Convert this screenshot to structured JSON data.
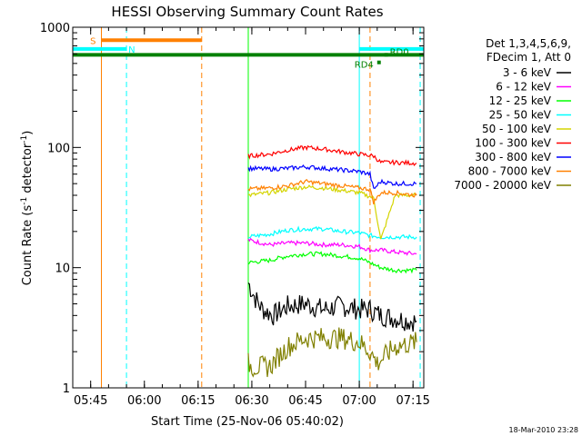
{
  "chart_data": {
    "type": "line",
    "title": "HESSI Observing Summary Count Rates",
    "xlabel": "Start Time (25-Nov-06 05:40:02)",
    "ylabel_main": "Count Rate (s",
    "ylabel_sup1": "-1",
    "ylabel_mid": " detector",
    "ylabel_sup2": "-1",
    "ylabel_end": ")",
    "yscale": "log",
    "xlim": [
      "05:40",
      "07:18"
    ],
    "ylim": [
      1,
      1000
    ],
    "xticks": [
      "05:45",
      "06:00",
      "06:15",
      "06:30",
      "06:45",
      "07:00",
      "07:15"
    ],
    "yticks": [
      {
        "value": 1,
        "label": "1"
      },
      {
        "value": 10,
        "label": "10"
      },
      {
        "value": 100,
        "label": "100"
      },
      {
        "value": 1000,
        "label": "1000"
      }
    ],
    "legend_header": [
      "Det 1,3,4,5,6,9,",
      "FDecim 1, Att 0"
    ],
    "legend_placement": "right",
    "timestamp": "18-Mar-2010 23:28",
    "series": [
      {
        "name": "3 - 6 keV",
        "color": "#000000",
        "x": [
          "06:29",
          "06:31",
          "06:33",
          "06:36",
          "06:40",
          "06:45",
          "06:50",
          "06:55",
          "07:00",
          "07:03",
          "07:06",
          "07:10",
          "07:14",
          "07:16"
        ],
        "values": [
          7.5,
          5.5,
          4.5,
          4.0,
          4.8,
          5.0,
          4.5,
          4.8,
          4.5,
          4.5,
          4.0,
          3.8,
          3.6,
          3.6
        ]
      },
      {
        "name": "6 - 12 keV",
        "color": "#ff00ff",
        "x": [
          "06:29",
          "06:35",
          "06:40",
          "06:45",
          "06:50",
          "06:55",
          "07:00",
          "07:03",
          "07:06",
          "07:10",
          "07:16"
        ],
        "values": [
          17,
          15.5,
          16,
          16,
          15.5,
          15.5,
          15,
          14,
          14,
          13.5,
          13
        ]
      },
      {
        "name": "12 - 25 keV",
        "color": "#00ff00",
        "x": [
          "06:29",
          "06:35",
          "06:40",
          "06:45",
          "06:50",
          "06:55",
          "07:00",
          "07:03",
          "07:06",
          "07:10",
          "07:16"
        ],
        "values": [
          11,
          11.5,
          12.5,
          13,
          13,
          12.5,
          12,
          11,
          10,
          9.5,
          9.5
        ]
      },
      {
        "name": "25 - 50 keV",
        "color": "#00ffff",
        "x": [
          "06:29",
          "06:35",
          "06:40",
          "06:45",
          "06:50",
          "06:55",
          "07:00",
          "07:03",
          "07:06",
          "07:10",
          "07:16"
        ],
        "values": [
          18,
          19,
          20.5,
          21,
          21,
          20,
          19.5,
          18.5,
          18,
          18,
          18
        ]
      },
      {
        "name": "50 - 100 keV",
        "color": "#d4d400",
        "x": [
          "06:29",
          "06:35",
          "06:40",
          "06:45",
          "06:50",
          "06:55",
          "07:00",
          "07:02",
          "07:04",
          "07:06",
          "07:10",
          "07:16"
        ],
        "values": [
          40,
          42,
          45,
          47,
          46,
          44,
          42,
          40,
          38,
          17,
          40,
          40
        ]
      },
      {
        "name": "100 - 300 keV",
        "color": "#ff0000",
        "x": [
          "06:29",
          "06:35",
          "06:40",
          "06:45",
          "06:50",
          "06:55",
          "07:00",
          "07:04",
          "07:06",
          "07:10",
          "07:16"
        ],
        "values": [
          85,
          88,
          95,
          100,
          97,
          92,
          88,
          85,
          75,
          75,
          74
        ]
      },
      {
        "name": "300 - 800 keV",
        "color": "#0000ff",
        "x": [
          "06:29",
          "06:35",
          "06:40",
          "06:45",
          "06:50",
          "06:55",
          "07:00",
          "07:03",
          "07:04",
          "07:06",
          "07:10",
          "07:16"
        ],
        "values": [
          67,
          66,
          67,
          69,
          67,
          65,
          63,
          60,
          45,
          52,
          50,
          50
        ]
      },
      {
        "name": "800 - 7000 keV",
        "color": "#ff8000",
        "x": [
          "06:29",
          "06:35",
          "06:40",
          "06:45",
          "06:50",
          "06:55",
          "07:00",
          "07:03",
          "07:04",
          "07:06",
          "07:10",
          "07:16"
        ],
        "values": [
          45,
          46,
          48,
          52,
          50,
          48,
          46,
          45,
          35,
          42,
          42,
          40
        ]
      },
      {
        "name": "7000 - 20000 keV",
        "color": "#808000",
        "x": [
          "06:29",
          "06:30",
          "06:35",
          "06:40",
          "06:45",
          "06:50",
          "06:55",
          "07:00",
          "07:03",
          "07:05",
          "07:10",
          "07:16"
        ],
        "values": [
          1.6,
          1.5,
          1.5,
          2.2,
          2.6,
          2.6,
          2.6,
          2.4,
          2.0,
          1.6,
          2.2,
          2.4
        ]
      }
    ],
    "annotations": [
      {
        "label": "S",
        "color": "#ff8000",
        "x": [
          "05:48",
          "06:16"
        ],
        "level": 780
      },
      {
        "label": "N",
        "color": "#00ffff",
        "x": [
          "05:40",
          "05:55"
        ],
        "level": 660
      },
      {
        "label": "",
        "color": "#00ffff",
        "x": [
          "07:00",
          "07:18"
        ],
        "level": 660
      },
      {
        "label": "",
        "color": "#008000",
        "x": [
          "05:40",
          "07:18"
        ],
        "level": 590
      },
      {
        "label": "RD0",
        "color": "#008000",
        "x": [
          "07:07",
          "07:08"
        ],
        "level": 590
      },
      {
        "label": "RD4",
        "color": "#008000",
        "x": [
          "07:05",
          "07:06"
        ],
        "level": 510
      }
    ],
    "vlines": [
      {
        "x": "05:48",
        "color": "#ff8000",
        "style": "solid"
      },
      {
        "x": "05:55",
        "color": "#00ffff",
        "style": "dashed"
      },
      {
        "x": "06:16",
        "color": "#ff8000",
        "style": "dashed"
      },
      {
        "x": "06:29",
        "color": "#00ff00",
        "style": "solid"
      },
      {
        "x": "07:00",
        "color": "#00ffff",
        "style": "solid"
      },
      {
        "x": "07:03",
        "color": "#ff8000",
        "style": "dashed"
      },
      {
        "x": "07:17",
        "color": "#00ffff",
        "style": "dashed"
      }
    ]
  }
}
